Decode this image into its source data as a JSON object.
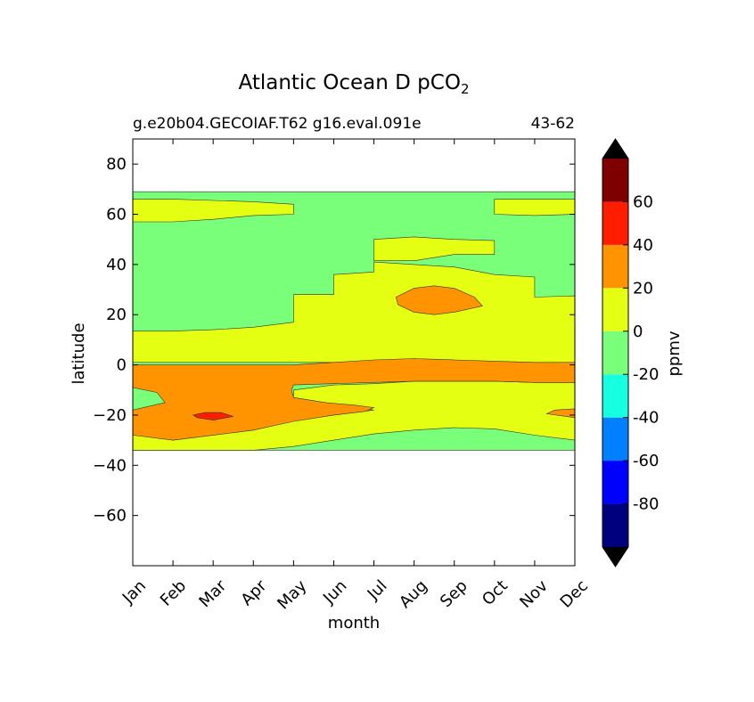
{
  "chart_data": {
    "type": "contourf",
    "title_main": "Atlantic Ocean D pCO",
    "title_sub": "2",
    "subtitle_left": "g.e20b04.GECOIAF.T62 g16.eval.091e",
    "subtitle_right": "43-62",
    "xlabel": "month",
    "ylabel": "latitude",
    "colorbar_label": "ppmv",
    "xlim": [
      0,
      11
    ],
    "ylim": [
      -80,
      90
    ],
    "x_ticks": [
      {
        "value": 0,
        "label": "Jan"
      },
      {
        "value": 1,
        "label": "Feb"
      },
      {
        "value": 2,
        "label": "Mar"
      },
      {
        "value": 3,
        "label": "Apr"
      },
      {
        "value": 4,
        "label": "May"
      },
      {
        "value": 5,
        "label": "Jun"
      },
      {
        "value": 6,
        "label": "Jul"
      },
      {
        "value": 7,
        "label": "Aug"
      },
      {
        "value": 8,
        "label": "Sep"
      },
      {
        "value": 9,
        "label": "Oct"
      },
      {
        "value": 10,
        "label": "Nov"
      },
      {
        "value": 11,
        "label": "Dec"
      }
    ],
    "y_ticks": [
      {
        "value": 80,
        "label": "80"
      },
      {
        "value": 60,
        "label": "60"
      },
      {
        "value": 40,
        "label": "40"
      },
      {
        "value": 20,
        "label": "20"
      },
      {
        "value": 0,
        "label": "0"
      },
      {
        "value": -20,
        "label": "−20"
      },
      {
        "value": -40,
        "label": "−40"
      },
      {
        "value": -60,
        "label": "−60"
      }
    ],
    "colorbar": {
      "levels": [
        -100,
        -80,
        -60,
        -40,
        -20,
        0,
        20,
        40,
        60,
        80
      ],
      "colors": [
        "#00007f",
        "#0000ff",
        "#007fff",
        "#16ffe1",
        "#7aff7a",
        "#e4ff12",
        "#ff9400",
        "#ff1d00",
        "#7f0000"
      ],
      "under_color": "#000000",
      "over_color": "#000000",
      "tick_labels": [
        {
          "value": -80,
          "label": "-80"
        },
        {
          "value": -60,
          "label": "-60"
        },
        {
          "value": -40,
          "label": "-40"
        },
        {
          "value": -20,
          "label": "-20"
        },
        {
          "value": 0,
          "label": "0"
        },
        {
          "value": 20,
          "label": "20"
        },
        {
          "value": 40,
          "label": "40"
        },
        {
          "value": 60,
          "label": "60"
        }
      ]
    },
    "data_extent_lat": [
      -34,
      69
    ],
    "regions": [
      {
        "name": "green-background",
        "color": "#7aff7a",
        "points": [
          [
            0,
            -34
          ],
          [
            11,
            -34
          ],
          [
            11,
            69
          ],
          [
            0,
            69
          ]
        ]
      },
      {
        "name": "north-yellow-band-west",
        "color": "#e4ff12",
        "points": [
          [
            0,
            66
          ],
          [
            1,
            66
          ],
          [
            2,
            65.5
          ],
          [
            3,
            65
          ],
          [
            4,
            64
          ],
          [
            4,
            60
          ],
          [
            3,
            59.5
          ],
          [
            2,
            58
          ],
          [
            1,
            57
          ],
          [
            0,
            57
          ]
        ]
      },
      {
        "name": "north-yellow-band-east",
        "color": "#e4ff12",
        "points": [
          [
            9,
            66
          ],
          [
            10,
            66
          ],
          [
            11,
            66
          ],
          [
            11,
            60
          ],
          [
            10,
            59.5
          ],
          [
            9,
            60
          ]
        ]
      },
      {
        "name": "subtropical-yellow",
        "color": "#e4ff12",
        "points": [
          [
            0,
            1
          ],
          [
            11,
            1
          ],
          [
            11,
            27.5
          ],
          [
            10,
            27
          ],
          [
            10,
            35
          ],
          [
            9,
            36
          ],
          [
            8,
            39
          ],
          [
            7,
            40
          ],
          [
            6,
            41
          ],
          [
            6,
            37
          ],
          [
            5,
            36
          ],
          [
            5,
            28
          ],
          [
            4,
            28
          ],
          [
            4,
            17
          ],
          [
            3,
            15
          ],
          [
            2,
            14
          ],
          [
            1,
            13.5
          ],
          [
            0,
            13.5
          ]
        ]
      },
      {
        "name": "north-yellow-patch-aug",
        "color": "#e4ff12",
        "points": [
          [
            6,
            50
          ],
          [
            7,
            51
          ],
          [
            8,
            50
          ],
          [
            9,
            49.5
          ],
          [
            9,
            44
          ],
          [
            8,
            44
          ],
          [
            7,
            41.5
          ],
          [
            6,
            41.5
          ]
        ]
      },
      {
        "name": "subtropical-orange-blob",
        "color": "#ff9400",
        "points": [
          [
            6.55,
            27
          ],
          [
            7,
            30.5
          ],
          [
            7.5,
            31.5
          ],
          [
            8,
            30.5
          ],
          [
            8.5,
            27
          ],
          [
            8.7,
            23.5
          ],
          [
            8,
            21
          ],
          [
            7.5,
            20
          ],
          [
            7,
            21
          ],
          [
            6.6,
            24
          ]
        ]
      },
      {
        "name": "southern-yellow",
        "color": "#e4ff12",
        "points": [
          [
            0,
            -34
          ],
          [
            3,
            -34
          ],
          [
            4,
            -32.5
          ],
          [
            5,
            -30
          ],
          [
            6,
            -27.5
          ],
          [
            7,
            -26
          ],
          [
            8,
            -25
          ],
          [
            9,
            -25.5
          ],
          [
            10,
            -28
          ],
          [
            11,
            -30
          ],
          [
            11,
            -7
          ],
          [
            10,
            -7
          ],
          [
            9,
            -6.5
          ],
          [
            8,
            -6.5
          ],
          [
            7,
            -6.5
          ],
          [
            6,
            -7.5
          ],
          [
            5,
            -8
          ],
          [
            4,
            -10
          ],
          [
            4,
            -15
          ],
          [
            5,
            -16
          ],
          [
            6,
            -18
          ],
          [
            5.5,
            -19
          ],
          [
            5,
            -20
          ],
          [
            4,
            -22
          ],
          [
            3,
            -26
          ],
          [
            2,
            -28
          ],
          [
            1,
            -30
          ],
          [
            0,
            -27
          ]
        ]
      },
      {
        "name": "equatorial-orange",
        "color": "#ff9400",
        "points": [
          [
            0,
            0
          ],
          [
            4,
            0
          ],
          [
            5,
            1
          ],
          [
            6,
            2
          ],
          [
            7,
            2.5
          ],
          [
            8,
            2
          ],
          [
            9,
            1.5
          ],
          [
            10,
            1
          ],
          [
            11,
            1
          ],
          [
            11,
            -7
          ],
          [
            10,
            -7
          ],
          [
            9,
            -6.5
          ],
          [
            8,
            -6.5
          ],
          [
            7,
            -6.5
          ],
          [
            6,
            -7
          ],
          [
            5,
            -7.5
          ],
          [
            4,
            -8
          ],
          [
            3.95,
            -10
          ],
          [
            4,
            -13
          ],
          [
            4.8,
            -15
          ],
          [
            5.5,
            -16
          ],
          [
            6,
            -17
          ],
          [
            5.8,
            -18.5
          ],
          [
            5,
            -20
          ],
          [
            4,
            -22.5
          ],
          [
            3,
            -26
          ],
          [
            2,
            -28
          ],
          [
            1,
            -30
          ],
          [
            0,
            -28
          ],
          [
            0,
            -18
          ],
          [
            0.8,
            -15
          ],
          [
            0.6,
            -11
          ],
          [
            0,
            -9
          ]
        ]
      },
      {
        "name": "southeast-orange-wedge",
        "color": "#ff9400",
        "points": [
          [
            11,
            -17.5
          ],
          [
            10.5,
            -18
          ],
          [
            10.3,
            -19.5
          ],
          [
            11,
            -21
          ]
        ]
      },
      {
        "name": "south-red-spot",
        "color": "#ff1d00",
        "points": [
          [
            1.5,
            -20
          ],
          [
            1.8,
            -19
          ],
          [
            2.2,
            -19
          ],
          [
            2.5,
            -20.5
          ],
          [
            2,
            -22
          ],
          [
            1.6,
            -21
          ]
        ]
      }
    ]
  }
}
